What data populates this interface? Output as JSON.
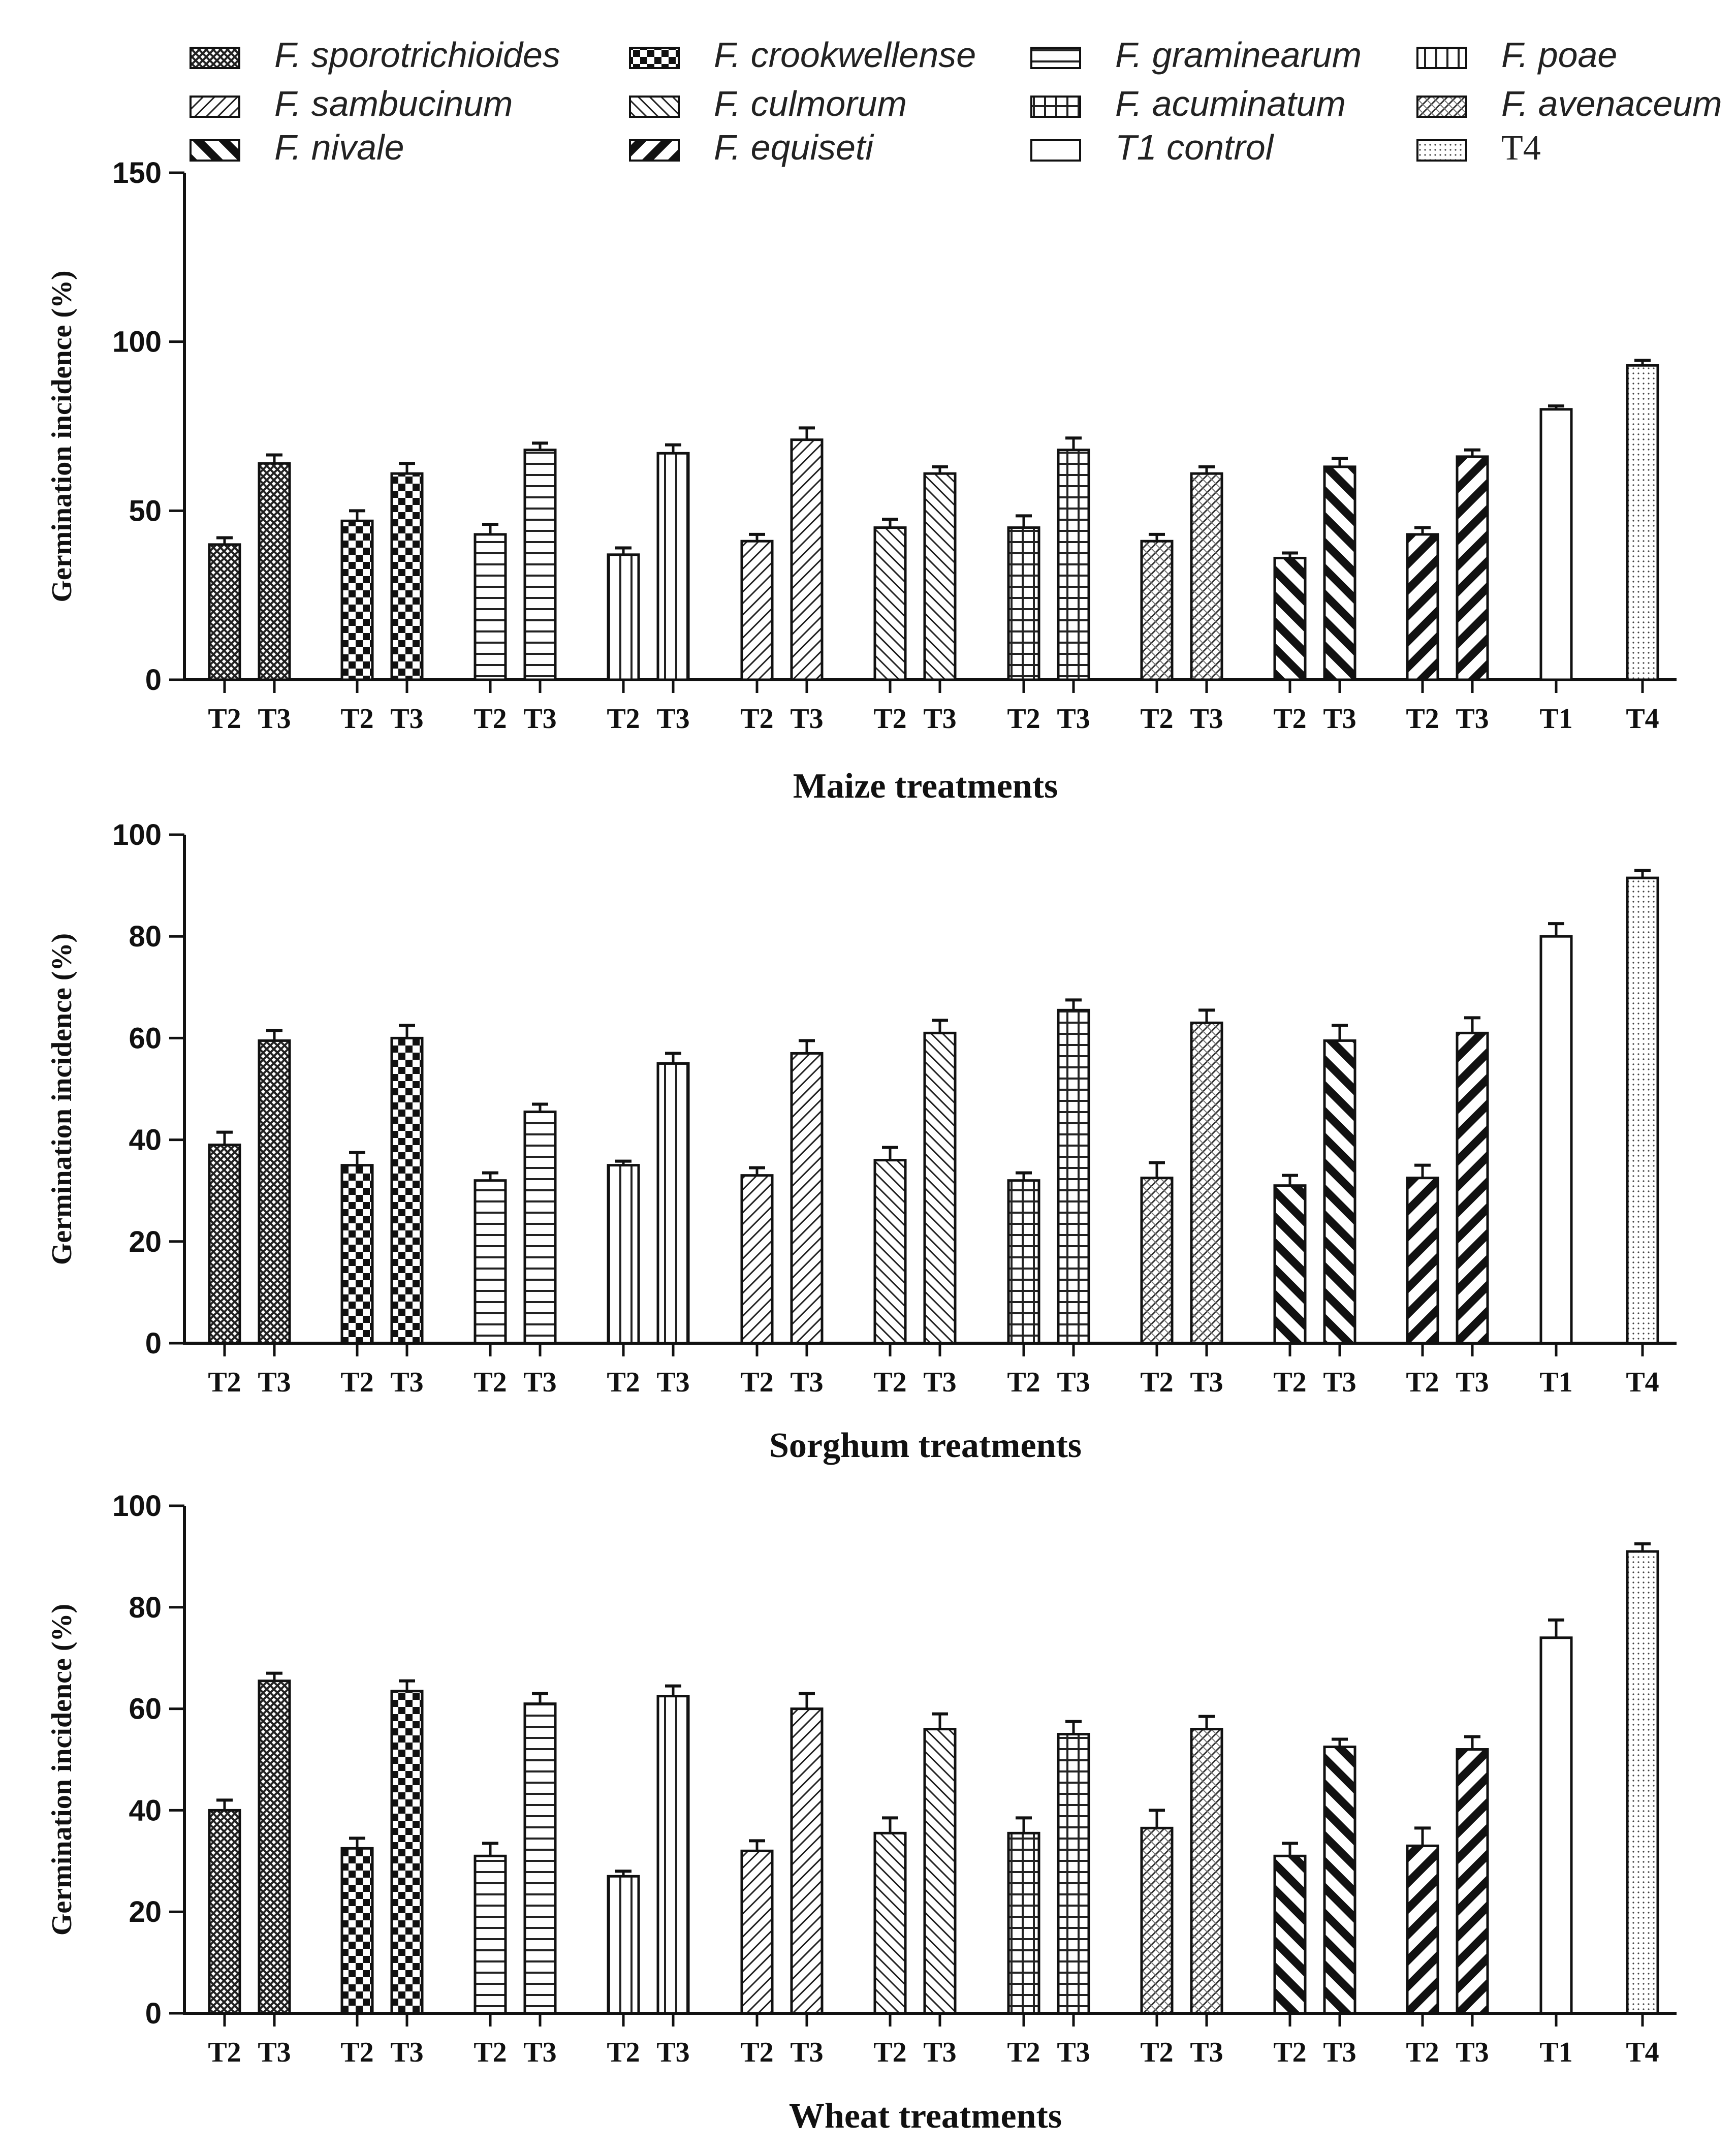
{
  "legend": [
    {
      "label": "F. sporotrichioides",
      "pattern": "crosshatch"
    },
    {
      "label": "F. crookwellense",
      "pattern": "checker"
    },
    {
      "label": "F. graminearum",
      "pattern": "hlines"
    },
    {
      "label": "F. poae",
      "pattern": "vlines"
    },
    {
      "label": "F. sambucinum",
      "pattern": "diag-fine"
    },
    {
      "label": "F. culmorum",
      "pattern": "diag-back-fine"
    },
    {
      "label": "F. acuminatum",
      "pattern": "grid"
    },
    {
      "label": "F. avenaceum",
      "pattern": "diag-cross-fine"
    },
    {
      "label": "F. nivale",
      "pattern": "diag-thick-back"
    },
    {
      "label": "F. equiseti",
      "pattern": "diag-thick"
    },
    {
      "label": "T1 control",
      "pattern": "none"
    },
    {
      "label": "T4",
      "pattern": "dots"
    }
  ],
  "chart_data": [
    {
      "type": "bar",
      "title": "",
      "xlabel": "Maize treatments",
      "ylabel": "Germination incidence (%)",
      "ylim": [
        0,
        150
      ],
      "yticks": [
        "0",
        "50",
        "100",
        "150"
      ],
      "groups": [
        {
          "series": "F. sporotrichioides",
          "bars": [
            {
              "label": "T2",
              "value": 40,
              "error": 2
            },
            {
              "label": "T3",
              "value": 64,
              "error": 2.5
            }
          ]
        },
        {
          "series": "F. crookwellense",
          "bars": [
            {
              "label": "T2",
              "value": 47,
              "error": 3
            },
            {
              "label": "T3",
              "value": 61,
              "error": 3
            }
          ]
        },
        {
          "series": "F. graminearum",
          "bars": [
            {
              "label": "T2",
              "value": 43,
              "error": 3
            },
            {
              "label": "T3",
              "value": 68,
              "error": 2
            }
          ]
        },
        {
          "series": "F. poae",
          "bars": [
            {
              "label": "T2",
              "value": 37,
              "error": 2
            },
            {
              "label": "T3",
              "value": 67,
              "error": 2.5
            }
          ]
        },
        {
          "series": "F. sambucinum",
          "bars": [
            {
              "label": "T2",
              "value": 41,
              "error": 2
            },
            {
              "label": "T3",
              "value": 71,
              "error": 3.5
            }
          ]
        },
        {
          "series": "F. culmorum",
          "bars": [
            {
              "label": "T2",
              "value": 45,
              "error": 2.5
            },
            {
              "label": "T3",
              "value": 61,
              "error": 2
            }
          ]
        },
        {
          "series": "F. acuminatum",
          "bars": [
            {
              "label": "T2",
              "value": 45,
              "error": 3.5
            },
            {
              "label": "T3",
              "value": 68,
              "error": 3.5
            }
          ]
        },
        {
          "series": "F. avenaceum",
          "bars": [
            {
              "label": "T2",
              "value": 41,
              "error": 2
            },
            {
              "label": "T3",
              "value": 61,
              "error": 2
            }
          ]
        },
        {
          "series": "F. nivale",
          "bars": [
            {
              "label": "T2",
              "value": 36,
              "error": 1.5
            },
            {
              "label": "T3",
              "value": 63,
              "error": 2.5
            }
          ]
        },
        {
          "series": "F. equiseti",
          "bars": [
            {
              "label": "T2",
              "value": 43,
              "error": 2
            },
            {
              "label": "T3",
              "value": 66,
              "error": 2
            }
          ]
        },
        {
          "series": "T1 control",
          "bars": [
            {
              "label": "T1",
              "value": 80,
              "error": 1
            }
          ]
        },
        {
          "series": "T4",
          "bars": [
            {
              "label": "T4",
              "value": 93,
              "error": 1.5
            }
          ]
        }
      ]
    },
    {
      "type": "bar",
      "title": "",
      "xlabel": "Sorghum treatments",
      "ylabel": "Germination incidence (%)",
      "ylim": [
        0,
        100
      ],
      "yticks": [
        "0",
        "20",
        "40",
        "60",
        "80",
        "100"
      ],
      "groups": [
        {
          "series": "F. sporotrichioides",
          "bars": [
            {
              "label": "T2",
              "value": 39,
              "error": 2.5
            },
            {
              "label": "T3",
              "value": 59.5,
              "error": 2
            }
          ]
        },
        {
          "series": "F. crookwellense",
          "bars": [
            {
              "label": "T2",
              "value": 35,
              "error": 2.5
            },
            {
              "label": "T3",
              "value": 60,
              "error": 2.5
            }
          ]
        },
        {
          "series": "F. graminearum",
          "bars": [
            {
              "label": "T2",
              "value": 32,
              "error": 1.5
            },
            {
              "label": "T3",
              "value": 45.5,
              "error": 1.5
            }
          ]
        },
        {
          "series": "F. poae",
          "bars": [
            {
              "label": "T2",
              "value": 35,
              "error": 0.8
            },
            {
              "label": "T3",
              "value": 55,
              "error": 2
            }
          ]
        },
        {
          "series": "F. sambucinum",
          "bars": [
            {
              "label": "T2",
              "value": 33,
              "error": 1.5
            },
            {
              "label": "T3",
              "value": 57,
              "error": 2.5
            }
          ]
        },
        {
          "series": "F. culmorum",
          "bars": [
            {
              "label": "T2",
              "value": 36,
              "error": 2.5
            },
            {
              "label": "T3",
              "value": 61,
              "error": 2.5
            }
          ]
        },
        {
          "series": "F. acuminatum",
          "bars": [
            {
              "label": "T2",
              "value": 32,
              "error": 1.5
            },
            {
              "label": "T3",
              "value": 65.5,
              "error": 2
            }
          ]
        },
        {
          "series": "F. avenaceum",
          "bars": [
            {
              "label": "T2",
              "value": 32.5,
              "error": 3
            },
            {
              "label": "T3",
              "value": 63,
              "error": 2.5
            }
          ]
        },
        {
          "series": "F. nivale",
          "bars": [
            {
              "label": "T2",
              "value": 31,
              "error": 2
            },
            {
              "label": "T3",
              "value": 59.5,
              "error": 3
            }
          ]
        },
        {
          "series": "F. equiseti",
          "bars": [
            {
              "label": "T2",
              "value": 32.5,
              "error": 2.5
            },
            {
              "label": "T3",
              "value": 61,
              "error": 3
            }
          ]
        },
        {
          "series": "T1 control",
          "bars": [
            {
              "label": "T1",
              "value": 80,
              "error": 2.5
            }
          ]
        },
        {
          "series": "T4",
          "bars": [
            {
              "label": "T4",
              "value": 91.5,
              "error": 1.5
            }
          ]
        }
      ]
    },
    {
      "type": "bar",
      "title": "",
      "xlabel": "Wheat treatments",
      "ylabel": "Germination incidence (%)",
      "ylim": [
        0,
        100
      ],
      "yticks": [
        "0",
        "20",
        "40",
        "60",
        "80",
        "100"
      ],
      "groups": [
        {
          "series": "F. sporotrichioides",
          "bars": [
            {
              "label": "T2",
              "value": 40,
              "error": 2
            },
            {
              "label": "T3",
              "value": 65.5,
              "error": 1.5
            }
          ]
        },
        {
          "series": "F. crookwellense",
          "bars": [
            {
              "label": "T2",
              "value": 32.5,
              "error": 2
            },
            {
              "label": "T3",
              "value": 63.5,
              "error": 2
            }
          ]
        },
        {
          "series": "F. graminearum",
          "bars": [
            {
              "label": "T2",
              "value": 31,
              "error": 2.5
            },
            {
              "label": "T3",
              "value": 61,
              "error": 2
            }
          ]
        },
        {
          "series": "F. poae",
          "bars": [
            {
              "label": "T2",
              "value": 27,
              "error": 1
            },
            {
              "label": "T3",
              "value": 62.5,
              "error": 2
            }
          ]
        },
        {
          "series": "F. sambucinum",
          "bars": [
            {
              "label": "T2",
              "value": 32,
              "error": 2
            },
            {
              "label": "T3",
              "value": 60,
              "error": 3
            }
          ]
        },
        {
          "series": "F. culmorum",
          "bars": [
            {
              "label": "T2",
              "value": 35.5,
              "error": 3
            },
            {
              "label": "T3",
              "value": 56,
              "error": 3
            }
          ]
        },
        {
          "series": "F. acuminatum",
          "bars": [
            {
              "label": "T2",
              "value": 35.5,
              "error": 3
            },
            {
              "label": "T3",
              "value": 55,
              "error": 2.5
            }
          ]
        },
        {
          "series": "F. avenaceum",
          "bars": [
            {
              "label": "T2",
              "value": 36.5,
              "error": 3.5
            },
            {
              "label": "T3",
              "value": 56,
              "error": 2.5
            }
          ]
        },
        {
          "series": "F. nivale",
          "bars": [
            {
              "label": "T2",
              "value": 31,
              "error": 2.5
            },
            {
              "label": "T3",
              "value": 52.5,
              "error": 1.5
            }
          ]
        },
        {
          "series": "F. equiseti",
          "bars": [
            {
              "label": "T2",
              "value": 33,
              "error": 3.5
            },
            {
              "label": "T3",
              "value": 52,
              "error": 2.5
            }
          ]
        },
        {
          "series": "T1 control",
          "bars": [
            {
              "label": "T1",
              "value": 74,
              "error": 3.5
            }
          ]
        },
        {
          "series": "T4",
          "bars": [
            {
              "label": "T4",
              "value": 91,
              "error": 1.5
            }
          ]
        }
      ]
    }
  ]
}
